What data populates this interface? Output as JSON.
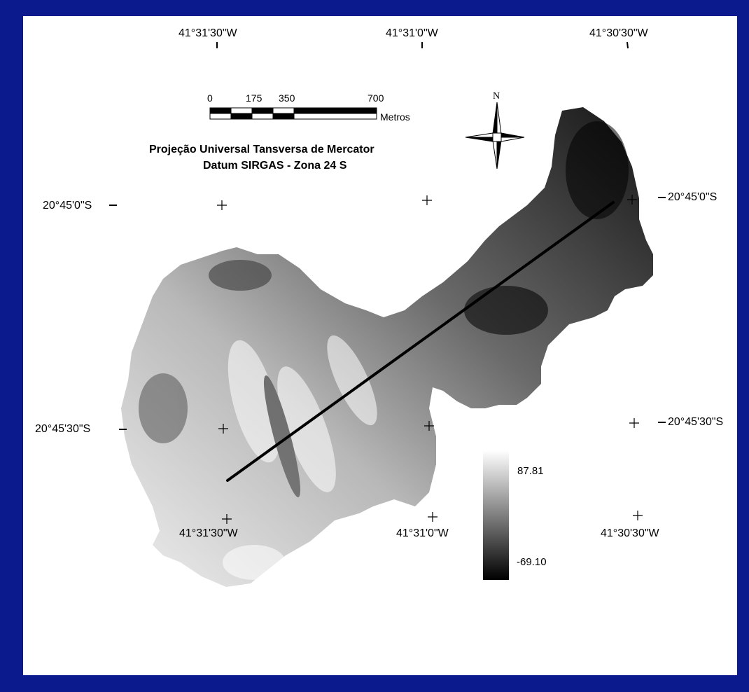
{
  "top_coords": [
    "41°31'30\"W",
    "41°31'0\"W",
    "41°30'30\"W"
  ],
  "bottom_coords": [
    "41°31'30\"W",
    "41°31'0\"W",
    "41°30'30\"W"
  ],
  "left_coords": [
    "20°45'0\"S",
    "20°45'30\"S"
  ],
  "right_coords": [
    "20°45'0\"S",
    "20°45'30\"S"
  ],
  "scale_bar": {
    "ticks": [
      "0",
      "175",
      "350",
      "700"
    ],
    "unit": "Metros"
  },
  "north_label": "N",
  "projection": {
    "line1": "Projeção Universal Tansversa de Mercator",
    "line2": "Datum SIRGAS - Zona 24 S"
  },
  "legend": {
    "max": "87.81",
    "min": "-69.10"
  },
  "colors": {
    "border": "#0b1a8c",
    "high": "#ffffff",
    "low": "#000000"
  }
}
